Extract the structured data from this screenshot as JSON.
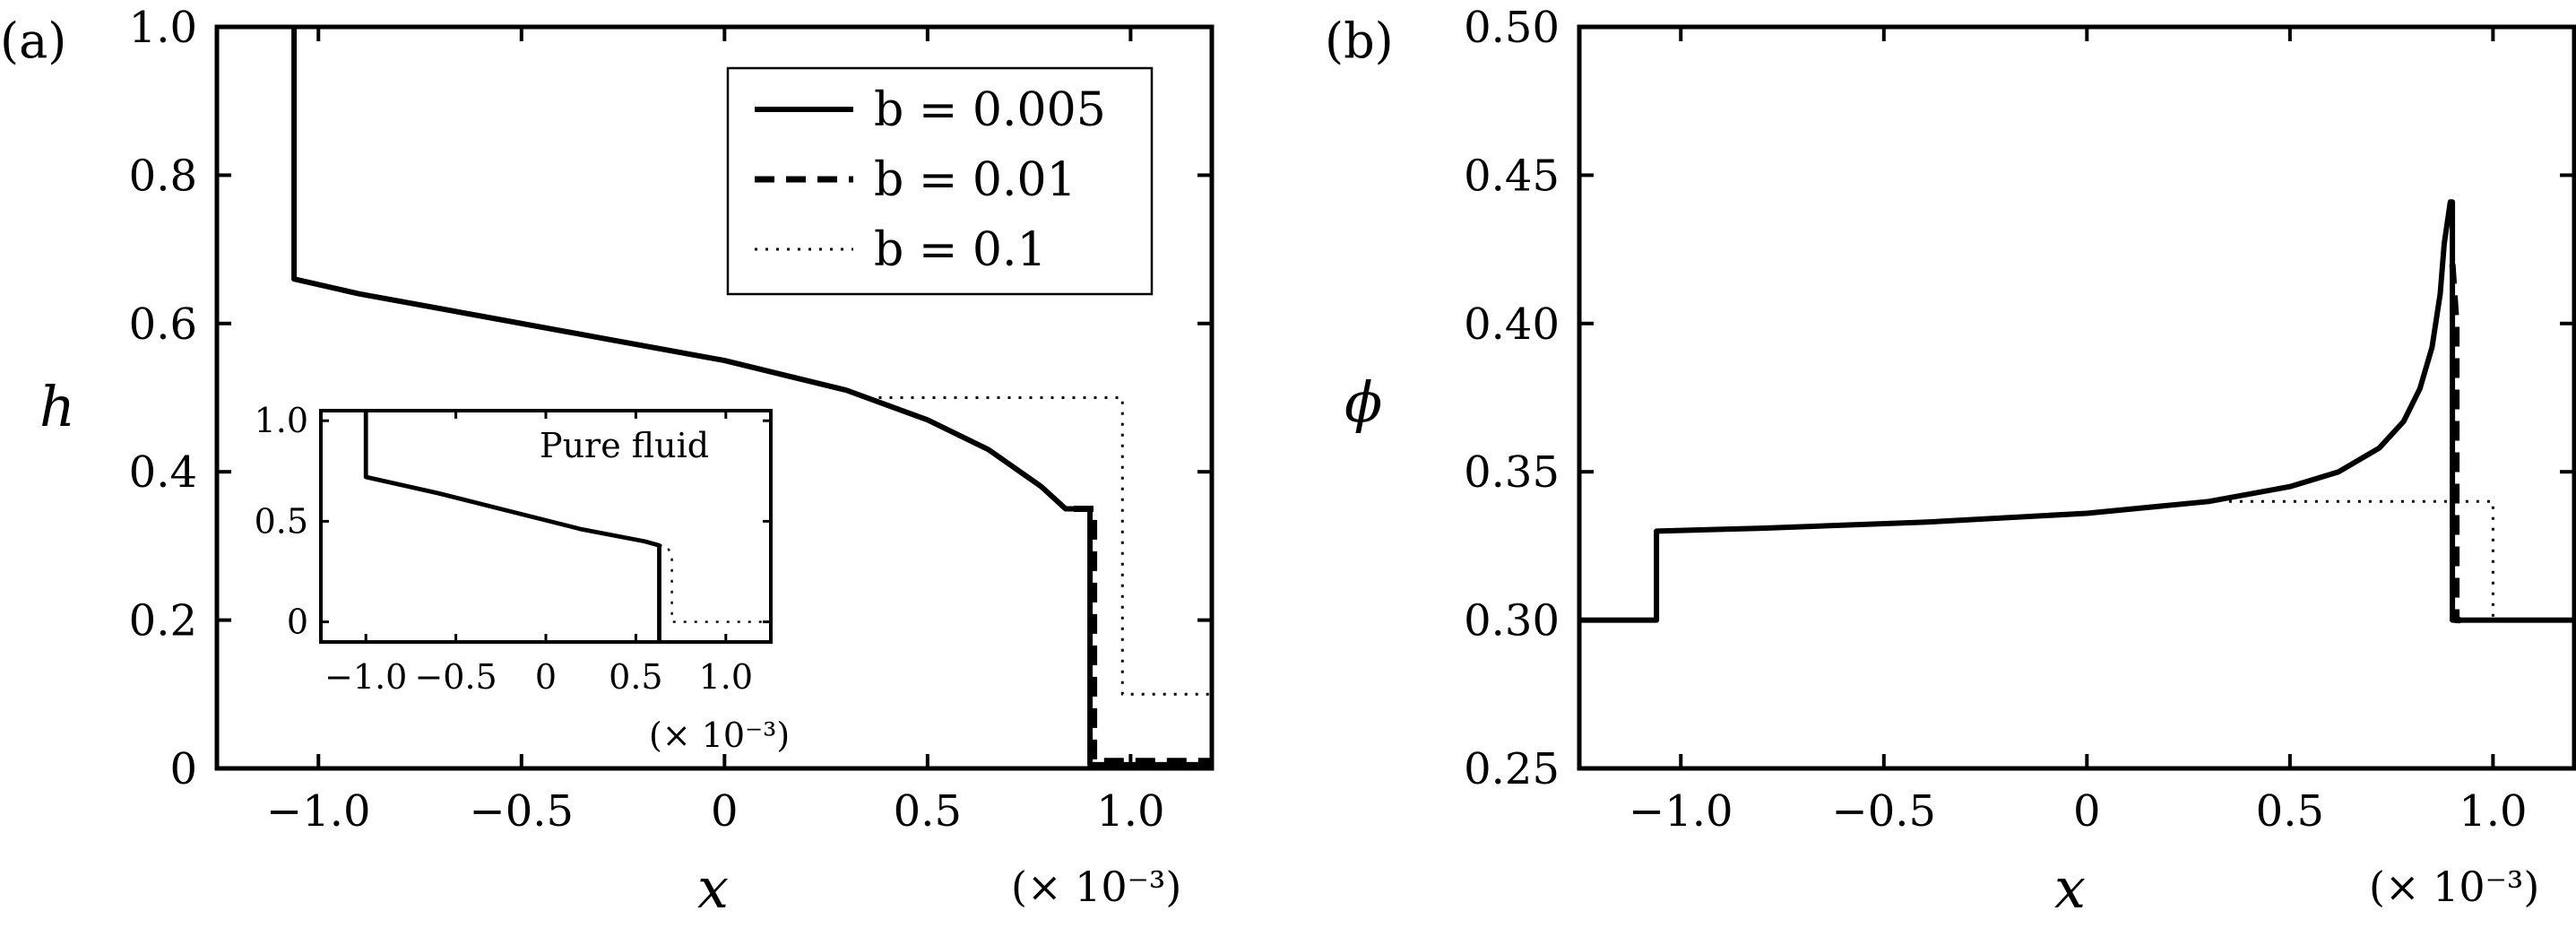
{
  "chart_data": [
    {
      "type": "line",
      "panel_label": "(a)",
      "xlabel": "x",
      "ylabel": "h",
      "x_multiplier": "(× 10⁻³)",
      "xlim": [
        -1.25,
        1.2
      ],
      "ylim": [
        0,
        1.0
      ],
      "xticks": [
        -1.0,
        -0.5,
        0,
        0.5,
        1.0
      ],
      "xtick_labels": [
        "−1.0",
        "−0.5",
        "0",
        "0.5",
        "1.0"
      ],
      "yticks": [
        0,
        0.2,
        0.4,
        0.6,
        0.8,
        1.0
      ],
      "ytick_labels": [
        "0",
        "0.2",
        "0.4",
        "0.6",
        "0.8",
        "1.0"
      ],
      "legend_position": "top-right",
      "series": [
        {
          "name": "b = 0.005",
          "legend_label": "b = 0.005",
          "style": "solid",
          "x": [
            -1.06,
            -1.06,
            -0.9,
            -0.6,
            -0.3,
            0.0,
            0.3,
            0.5,
            0.65,
            0.78,
            0.84,
            0.86,
            0.88,
            0.9,
            0.9,
            0.92,
            0.93,
            1.2
          ],
          "y": [
            1.0,
            0.66,
            0.64,
            0.61,
            0.58,
            0.55,
            0.51,
            0.47,
            0.43,
            0.38,
            0.35,
            0.35,
            0.35,
            0.35,
            0.005,
            0.005,
            0.005,
            0.005
          ]
        },
        {
          "name": "b = 0.01",
          "legend_label": "b = 0.01",
          "style": "dashed",
          "x": [
            0.86,
            0.88,
            0.9,
            0.91,
            0.91,
            1.0,
            1.2
          ],
          "y": [
            0.35,
            0.35,
            0.35,
            0.35,
            0.01,
            0.01,
            0.01
          ]
        },
        {
          "name": "b = 0.1",
          "legend_label": "b = 0.1",
          "style": "dotted",
          "x": [
            0.38,
            0.98,
            0.98,
            1.2
          ],
          "y": [
            0.5,
            0.5,
            0.1,
            0.1
          ]
        }
      ],
      "inset": {
        "annotation": "Pure fluid",
        "x_multiplier": "(× 10⁻³)",
        "xlim": [
          -1.25,
          1.25
        ],
        "ylim": [
          -0.1,
          1.05
        ],
        "xticks": [
          -1.0,
          -0.5,
          0,
          0.5,
          1.0
        ],
        "xtick_labels": [
          "−1.0",
          "−0.5",
          "0",
          "0.5",
          "1.0"
        ],
        "yticks": [
          0,
          0.5,
          1.0
        ],
        "ytick_labels": [
          "0",
          "0.5",
          "1.0"
        ],
        "series": [
          {
            "style": "solid",
            "x": [
              -1.0,
              -1.0,
              -0.6,
              -0.2,
              0.2,
              0.55,
              0.63,
              0.63
            ],
            "y": [
              1.05,
              0.72,
              0.64,
              0.55,
              0.46,
              0.4,
              0.38,
              -0.1
            ]
          },
          {
            "style": "dotted",
            "x": [
              0.63,
              0.67,
              0.7,
              0.7,
              1.25
            ],
            "y": [
              0.38,
              0.38,
              0.33,
              0.0,
              0.0
            ]
          }
        ]
      }
    },
    {
      "type": "line",
      "panel_label": "(b)",
      "xlabel": "x",
      "ylabel": "ϕ",
      "x_multiplier": "(× 10⁻³)",
      "xlim": [
        -1.25,
        1.2
      ],
      "ylim": [
        0.25,
        0.5
      ],
      "xticks": [
        -1.0,
        -0.5,
        0,
        0.5,
        1.0
      ],
      "xtick_labels": [
        "−1.0",
        "−0.5",
        "0",
        "0.5",
        "1.0"
      ],
      "yticks": [
        0.25,
        0.3,
        0.35,
        0.4,
        0.45,
        0.5
      ],
      "ytick_labels": [
        "0.25",
        "0.30",
        "0.35",
        "0.40",
        "0.45",
        "0.50"
      ],
      "series": [
        {
          "name": "b = 0.005",
          "style": "solid",
          "x": [
            -1.25,
            -1.06,
            -1.06,
            -0.8,
            -0.4,
            0.0,
            0.3,
            0.5,
            0.62,
            0.72,
            0.78,
            0.82,
            0.85,
            0.87,
            0.88,
            0.895,
            0.9,
            0.9,
            1.2
          ],
          "y": [
            0.3,
            0.3,
            0.33,
            0.331,
            0.333,
            0.336,
            0.34,
            0.345,
            0.35,
            0.358,
            0.367,
            0.378,
            0.392,
            0.41,
            0.427,
            0.441,
            0.441,
            0.3,
            0.3
          ]
        },
        {
          "name": "b = 0.01",
          "style": "dashed",
          "x": [
            0.9,
            0.91,
            0.91,
            0.92
          ],
          "y": [
            0.42,
            0.4,
            0.3,
            0.3
          ]
        },
        {
          "name": "b = 0.1",
          "style": "dotted",
          "x": [
            0.35,
            1.0,
            1.0,
            1.02
          ],
          "y": [
            0.34,
            0.34,
            0.3,
            0.3
          ]
        }
      ]
    }
  ]
}
